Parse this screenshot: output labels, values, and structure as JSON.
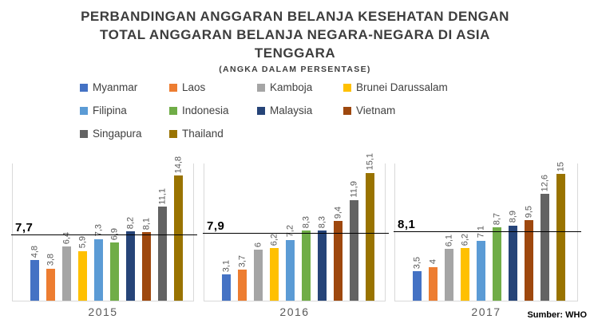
{
  "header": {
    "title_lines": [
      "PERBANDINGAN ANGGARAN BELANJA KESEHATAN DENGAN",
      "TOTAL ANGGARAN BELANJA NEGARA-NEGARA DI ASIA",
      "TENGGARA"
    ],
    "subtitle": "(ANGKA DALAM PERSENTASE)"
  },
  "footer": {
    "source": "Sumber: WHO"
  },
  "chart_data": {
    "type": "bar",
    "title": "PERBANDINGAN ANGGARAN BELANJA KESEHATAN DENGAN TOTAL ANGGARAN BELANJA NEGARA-NEGARA DI ASIA TENGGARA",
    "subtitle": "(ANGKA DALAM PERSENTASE)",
    "categories": [
      "2015",
      "2016",
      "2017"
    ],
    "series": [
      {
        "name": "Myanmar",
        "color": "#4472C4",
        "values": [
          4.8,
          3.1,
          3.5
        ]
      },
      {
        "name": "Laos",
        "color": "#ED7D31",
        "values": [
          3.8,
          3.7,
          4
        ]
      },
      {
        "name": "Kamboja",
        "color": "#A5A5A5",
        "values": [
          6.4,
          6,
          6.1
        ]
      },
      {
        "name": "Brunei Darussalam",
        "color": "#FFC000",
        "values": [
          5.9,
          6.2,
          6.2
        ]
      },
      {
        "name": "Filipina",
        "color": "#5B9BD5",
        "values": [
          7.3,
          7.2,
          7.1
        ]
      },
      {
        "name": "Indonesia",
        "color": "#70AD47",
        "values": [
          6.9,
          8.3,
          8.7
        ]
      },
      {
        "name": "Malaysia",
        "color": "#264478",
        "values": [
          8.2,
          8.3,
          8.9
        ]
      },
      {
        "name": "Vietnam",
        "color": "#9E480E",
        "values": [
          8.1,
          9.4,
          9.5
        ]
      },
      {
        "name": "Singapura",
        "color": "#636363",
        "values": [
          11.1,
          11.9,
          12.6
        ]
      },
      {
        "name": "Thailand",
        "color": "#997300",
        "values": [
          14.8,
          15.1,
          15
        ]
      }
    ],
    "reference_lines": [
      {
        "category": "2015",
        "value": 7.7,
        "label": "7,7"
      },
      {
        "category": "2016",
        "value": 7.9,
        "label": "7,9"
      },
      {
        "category": "2017",
        "value": 8.1,
        "label": "8,1"
      }
    ],
    "value_label_format": "comma-decimal",
    "xlabel": "",
    "ylabel": "",
    "ylim": [
      0,
      16.3
    ],
    "grid": false,
    "legend_position": "top-left",
    "source": "Sumber: WHO"
  }
}
